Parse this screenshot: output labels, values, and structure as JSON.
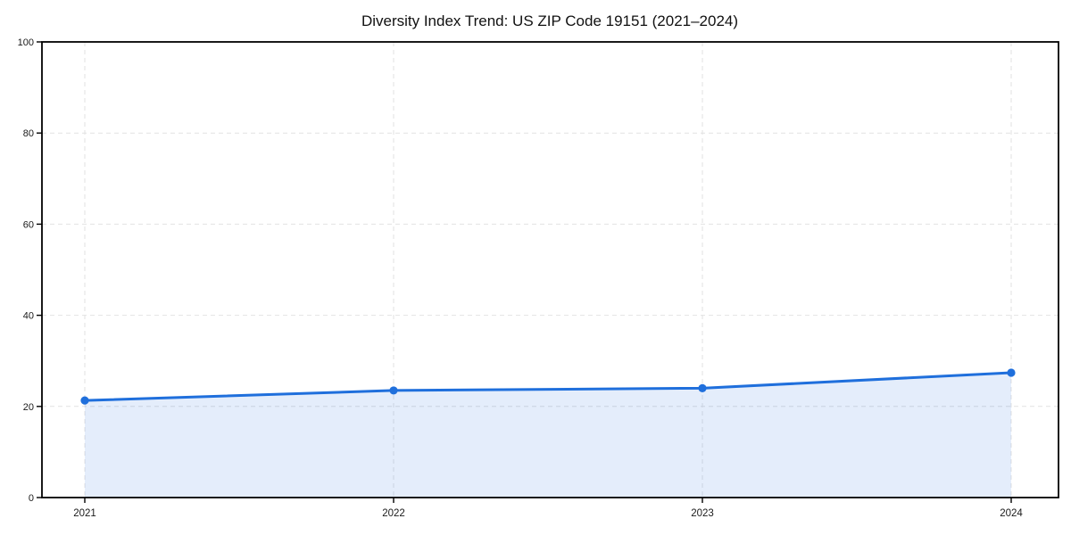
{
  "title": "Diversity Index Trend: US ZIP Code 19151 (2021–2024)",
  "chart_data": {
    "type": "area",
    "title": "Diversity Index Trend: US ZIP Code 19151 (2021–2024)",
    "categories": [
      "2021",
      "2022",
      "2023",
      "2024"
    ],
    "series": [
      {
        "name": "Diversity Index",
        "values": [
          21.3,
          23.5,
          24.0,
          27.4
        ]
      }
    ],
    "xlabel": "",
    "ylabel": "",
    "ylim": [
      0,
      100
    ],
    "yticks": [
      0,
      20,
      40,
      60,
      80,
      100
    ],
    "grid": true,
    "grid_style": "dashed",
    "legend": false,
    "colors": {
      "line": "#1f6fdc",
      "marker": "#1f6fdc",
      "fill": "#1f6fdc",
      "fill_opacity": 0.12,
      "grid": "#e2e2e2",
      "spine": "#000000",
      "tick_label": "#1a1a1a",
      "title": "#111111",
      "background": "#ffffff"
    }
  }
}
